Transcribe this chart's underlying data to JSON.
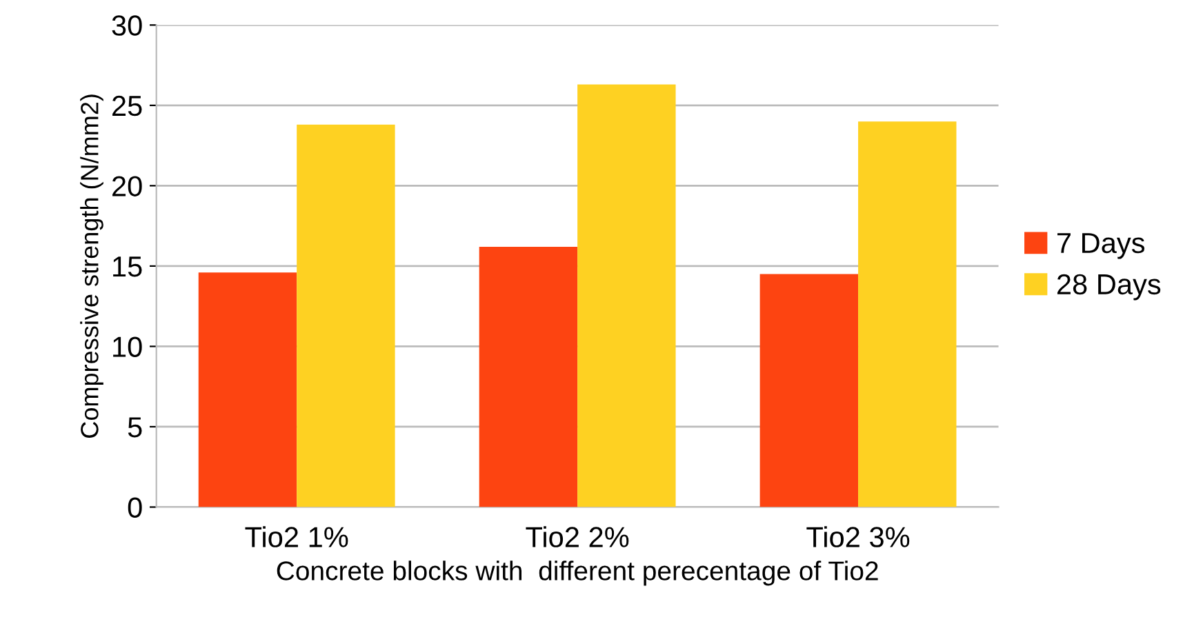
{
  "chart_data": {
    "type": "bar",
    "xlabel": "Concrete blocks with  different perecentage of Tio2",
    "ylabel": "Compressive strength (N/mm2)",
    "categories": [
      "Tio2 1%",
      "Tio2 2%",
      "Tio2 3%"
    ],
    "series": [
      {
        "name": "7 Days",
        "color": "#fd4411",
        "values": [
          14.6,
          16.2,
          14.5
        ]
      },
      {
        "name": "28 Days",
        "color": "#fed122",
        "values": [
          23.8,
          26.3,
          24.0
        ]
      }
    ],
    "ylim": [
      0,
      30
    ],
    "yticks": [
      0,
      5,
      10,
      15,
      20,
      25,
      30
    ],
    "grid": "y",
    "legend": "right"
  }
}
